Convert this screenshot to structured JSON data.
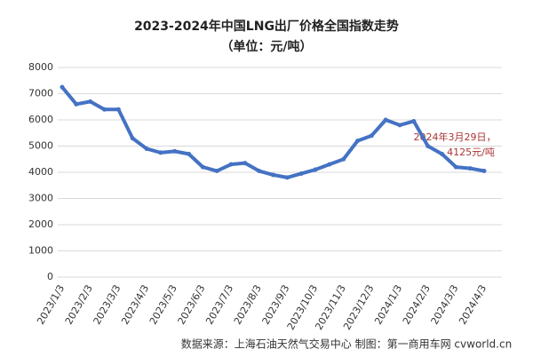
{
  "chart_data": {
    "type": "line",
    "title": "2023-2024年中国LNG出厂价格全国指数走势",
    "subtitle": "（单位：元/吨）",
    "categories": [
      "2023/1/3",
      null,
      "2023/2/3",
      null,
      "2023/3/3",
      null,
      "2023/4/3",
      null,
      "2023/5/3",
      null,
      "2023/6/3",
      null,
      "2023/7/3",
      null,
      "2023/8/3",
      null,
      "2023/9/3",
      null,
      "2023/10/3",
      null,
      "2023/11/3",
      null,
      "2023/12/3",
      null,
      "2024/1/3",
      null,
      "2024/2/3",
      null,
      "2024/3/3",
      null,
      "2024/4/3"
    ],
    "series": [
      {
        "name": "LNG出厂价格全国指数",
        "color": "#4472c4",
        "values": [
          7250,
          6600,
          6700,
          6400,
          6400,
          5300,
          4900,
          4750,
          4800,
          4700,
          4200,
          4050,
          4300,
          4350,
          4050,
          3900,
          3800,
          3950,
          4100,
          4300,
          4500,
          5200,
          5400,
          6000,
          5800,
          5950,
          5000,
          4700,
          4200,
          4150,
          4050
        ]
      }
    ],
    "ylim": [
      0,
      8000
    ],
    "yticks": [
      0,
      1000,
      2000,
      3000,
      4000,
      5000,
      6000,
      7000,
      8000
    ],
    "grid": true,
    "annotation": [
      "2024年3月29日，",
      "4125元/吨"
    ],
    "source": "数据来源：上海石油天然气交易中心 制图：第一商用车网 cvworld.cn"
  }
}
